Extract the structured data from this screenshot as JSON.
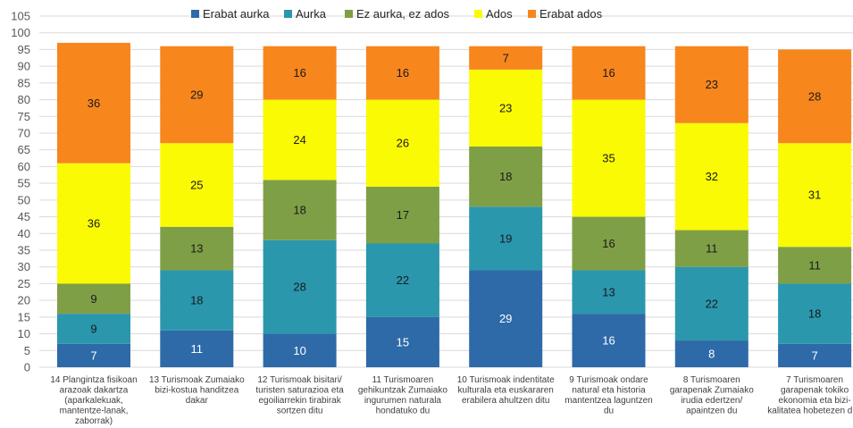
{
  "chart_data": {
    "type": "bar",
    "stacked": true,
    "ylim": [
      0,
      105
    ],
    "y_ticks": [
      0,
      5,
      10,
      15,
      20,
      25,
      30,
      35,
      40,
      45,
      50,
      55,
      60,
      65,
      70,
      75,
      80,
      85,
      90,
      95,
      100,
      105
    ],
    "grid": true,
    "legend_position": "top",
    "categories": [
      [
        "14 Plangintza fisikoan",
        "arazoak dakartza",
        "(aparkalekuak,",
        "mantentze-lanak,",
        "zaborrak)"
      ],
      [
        "13 Turismoak Zumaiako",
        "bizi-kostua handitzea",
        "dakar"
      ],
      [
        "12 Turismoak bisitari/",
        "turisten saturazioa eta",
        "egoiliarrekin tirabirak",
        "sortzen ditu"
      ],
      [
        "11 Turismoaren",
        "gehikuntzak Zumaiako",
        "ingurumen naturala",
        "hondatuko du"
      ],
      [
        "10 Turismoak indentitate",
        "kulturala eta euskararen",
        "erabilera ahultzen ditu"
      ],
      [
        "9 Turismoak ondare",
        "natural eta historia",
        "mantentzea laguntzen",
        "du"
      ],
      [
        "8 Turismoaren",
        "garapenak Zumaiako",
        "irudia edertzen/",
        "apaintzen du"
      ],
      [
        "7 Turismoaren",
        "garapenak tokiko",
        "ekonomia eta bizi-",
        "kalitatea hobetezen ditu"
      ]
    ],
    "series": [
      {
        "name": "Erabat aurka",
        "color": "#2e6aa8",
        "label_light": true,
        "values": [
          7,
          11,
          10,
          15,
          29,
          16,
          8,
          7
        ]
      },
      {
        "name": "Aurka",
        "color": "#2a97ad",
        "label_light": false,
        "values": [
          9,
          18,
          28,
          22,
          19,
          13,
          22,
          18
        ]
      },
      {
        "name": "Ez aurka, ez ados",
        "color": "#7f9f47",
        "label_light": false,
        "values": [
          9,
          13,
          18,
          17,
          18,
          16,
          11,
          11
        ]
      },
      {
        "name": "Ados",
        "color": "#fafa04",
        "label_light": false,
        "values": [
          36,
          25,
          24,
          26,
          23,
          35,
          32,
          31
        ]
      },
      {
        "name": "Erabat ados",
        "color": "#f7861d",
        "label_light": false,
        "values": [
          36,
          29,
          16,
          16,
          7,
          16,
          23,
          28
        ]
      }
    ]
  }
}
